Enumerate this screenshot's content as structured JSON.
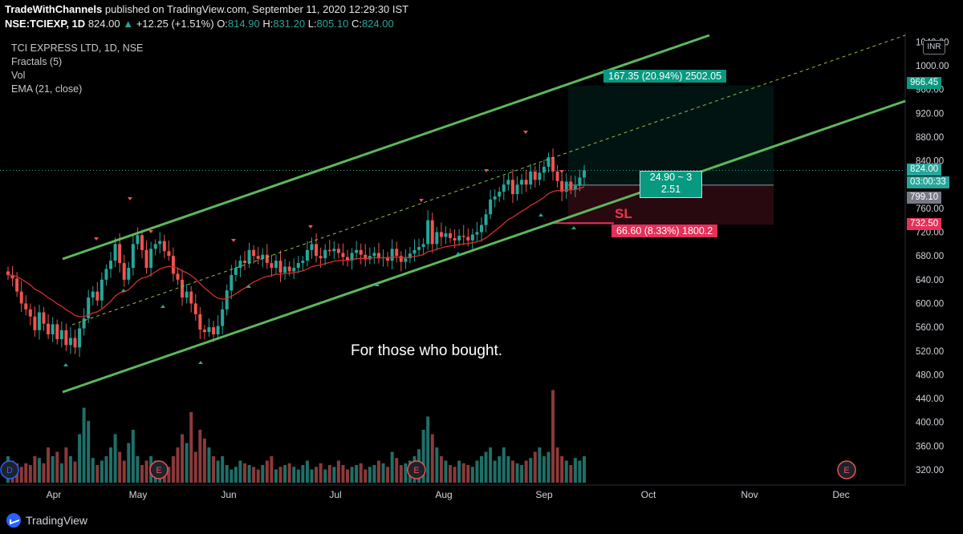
{
  "header": {
    "publisher": "TradeWithChannels",
    "published_text": "published on TradingView.com, September 11, 2020 12:29:30 IST",
    "symbol": "NSE:TCIEXP, 1D",
    "last": "824.00",
    "change": "+12.25 (+1.51%)",
    "o_label": "O:",
    "o": "814.90",
    "h_label": "H:",
    "h": "831.20",
    "l_label": "L:",
    "l": "805.10",
    "c_label": "C:",
    "c": "824.00"
  },
  "legend": {
    "title": "TCI EXPRESS LTD, 1D, NSE",
    "ind1": "Fractals (5)",
    "ind2": "Vol",
    "ind3": "EMA (21, close)"
  },
  "currency": "INR",
  "annotations": {
    "note": "For those who bought.",
    "sl": "SL",
    "target_label": "167.35 (20.94%) 2502.05",
    "stop_label": "66.60 (8.33%) 1800.2",
    "rr_line1": "24.90 ~ 3",
    "rr_line2": "2.51"
  },
  "price_tags": {
    "target": "966.45",
    "last": "824.00",
    "countdown": "03:00:33",
    "entry": "799.10",
    "stop": "732.50"
  },
  "footer": {
    "brand": "TradingView"
  },
  "colors": {
    "up": "#26a69a",
    "down": "#ef5350",
    "channel": "#5cb85c",
    "ema": "#d32f2f",
    "target": "#089981",
    "stop": "#e5305a"
  },
  "chart_data": {
    "type": "candlestick",
    "y_ticks": [
      1040,
      1000,
      960,
      920,
      880,
      840,
      800,
      760,
      720,
      680,
      640,
      600,
      560,
      520,
      480,
      440,
      400,
      360,
      320
    ],
    "y_tick_labels": [
      "1040.00",
      "1000.00",
      "960.00",
      "920.00",
      "880.00",
      "840.00",
      "800.00",
      "760.00",
      "720.00",
      "680.00",
      "640.00",
      "600.00",
      "560.00",
      "520.00",
      "480.00",
      "440.00",
      "400.00",
      "360.00",
      "320.00"
    ],
    "ylim": [
      300,
      1050
    ],
    "x_labels": [
      "Apr",
      "May",
      "Jun",
      "Jul",
      "Aug",
      "Sep",
      "Oct",
      "Nov",
      "Dec"
    ],
    "events": [
      {
        "type": "D",
        "month": "Mar"
      },
      {
        "type": "E",
        "month": "May"
      },
      {
        "type": "E",
        "month": "Jul"
      },
      {
        "type": "E",
        "month": "Nov"
      }
    ],
    "channel": {
      "lower_start": {
        "date": "Apr 1",
        "price": 450
      },
      "upper_start": {
        "date": "Apr 1",
        "price": 672
      },
      "upper_end": {
        "date": "Oct 1",
        "price": 1083
      },
      "lower_end": {
        "date": "Dec 15",
        "price": 950
      }
    },
    "closes": [
      648,
      642,
      620,
      600,
      590,
      578,
      555,
      585,
      566,
      548,
      565,
      540,
      555,
      530,
      542,
      526,
      558,
      575,
      610,
      620,
      605,
      640,
      658,
      672,
      700,
      668,
      640,
      660,
      700,
      715,
      690,
      660,
      692,
      700,
      705,
      688,
      680,
      650,
      640,
      610,
      620,
      600,
      582,
      556,
      552,
      560,
      548,
      562,
      590,
      622,
      648,
      660,
      672,
      668,
      690,
      680,
      675,
      682,
      668,
      660,
      672,
      652,
      662,
      654,
      660,
      668,
      672,
      690,
      700,
      680,
      676,
      690,
      688,
      692,
      685,
      678,
      672,
      685,
      690,
      682,
      674,
      680,
      685,
      676,
      678,
      672,
      692,
      680,
      670,
      676,
      684,
      690,
      695,
      700,
      740,
      700,
      720,
      712,
      718,
      710,
      706,
      714,
      712,
      706,
      716,
      720,
      732,
      750,
      775,
      780,
      788,
      800,
      808,
      784,
      800,
      808,
      800,
      822,
      808,
      820,
      830,
      846,
      822,
      806,
      788,
      805,
      792,
      798,
      812,
      824
    ],
    "volume": [
      30,
      25,
      22,
      18,
      22,
      20,
      30,
      28,
      22,
      40,
      30,
      35,
      22,
      40,
      30,
      24,
      55,
      85,
      70,
      28,
      20,
      25,
      30,
      40,
      55,
      35,
      25,
      45,
      60,
      30,
      20,
      25,
      30,
      25,
      20,
      15,
      18,
      30,
      40,
      55,
      45,
      80,
      35,
      60,
      50,
      40,
      30,
      25,
      30,
      20,
      15,
      18,
      25,
      22,
      20,
      18,
      15,
      20,
      25,
      30,
      15,
      18,
      20,
      22,
      18,
      15,
      20,
      25,
      15,
      18,
      22,
      15,
      20,
      18,
      25,
      20,
      15,
      18,
      20,
      22,
      15,
      18,
      20,
      25,
      22,
      18,
      35,
      28,
      20,
      22,
      25,
      30,
      38,
      60,
      75,
      55,
      40,
      30,
      25,
      20,
      18,
      25,
      22,
      20,
      18,
      25,
      30,
      35,
      40,
      25,
      30,
      40,
      30,
      25,
      22,
      20,
      25,
      28,
      35,
      40,
      30,
      35,
      105,
      40,
      30,
      25,
      20,
      28,
      25,
      30
    ],
    "ema_note": "EMA (21, close)"
  }
}
